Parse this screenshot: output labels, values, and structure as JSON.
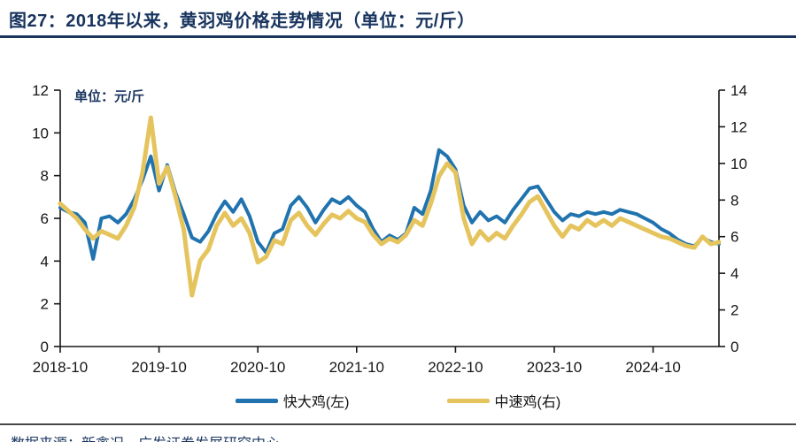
{
  "figure": {
    "title": "图27：2018年以来，黄羽鸡价格走势情况（单位：元/斤）",
    "source": "数据来源：新禽况，广发证券发展研究中心"
  },
  "colors": {
    "accent_navy": "#18345E",
    "fast_chicken_blue": "#2073AE",
    "medium_chicken_gold": "#E5C45E",
    "axis_text": "#161616",
    "footer_rule": "#474747"
  },
  "chart_data": {
    "type": "line",
    "title": "2018年以来，黄羽鸡价格走势情况",
    "unit_label": "单位：元/斤",
    "legend_position": "bottom",
    "grid": false,
    "x_tick_labels": [
      "2018-10",
      "2019-10",
      "2020-10",
      "2021-10",
      "2022-10",
      "2023-10",
      "2024-10"
    ],
    "left_axis": {
      "ticks": [
        0,
        2,
        4,
        6,
        8,
        10,
        12
      ],
      "range": [
        0,
        12
      ]
    },
    "right_axis": {
      "ticks": [
        0,
        2,
        4,
        6,
        8,
        10,
        12,
        14
      ],
      "range": [
        0,
        14
      ]
    },
    "x": [
      "2018-10",
      "2018-11",
      "2018-12",
      "2019-01",
      "2019-02",
      "2019-03",
      "2019-04",
      "2019-05",
      "2019-06",
      "2019-07",
      "2019-08",
      "2019-09",
      "2019-10",
      "2019-11",
      "2019-12",
      "2020-01",
      "2020-02",
      "2020-03",
      "2020-04",
      "2020-05",
      "2020-06",
      "2020-07",
      "2020-08",
      "2020-09",
      "2020-10",
      "2020-11",
      "2020-12",
      "2021-01",
      "2021-02",
      "2021-03",
      "2021-04",
      "2021-05",
      "2021-06",
      "2021-07",
      "2021-08",
      "2021-09",
      "2021-10",
      "2021-11",
      "2021-12",
      "2022-01",
      "2022-02",
      "2022-03",
      "2022-04",
      "2022-05",
      "2022-06",
      "2022-07",
      "2022-08",
      "2022-09",
      "2022-10",
      "2022-11",
      "2022-12",
      "2023-01",
      "2023-02",
      "2023-03",
      "2023-04",
      "2023-05",
      "2023-06",
      "2023-07",
      "2023-08",
      "2023-09",
      "2023-10",
      "2023-11",
      "2023-12",
      "2024-01",
      "2024-02",
      "2024-03",
      "2024-04",
      "2024-05",
      "2024-06",
      "2024-07",
      "2024-08",
      "2024-09",
      "2024-10",
      "2024-11",
      "2024-12",
      "2025-01",
      "2025-02",
      "2025-03",
      "2025-04",
      "2025-05",
      "2025-06"
    ],
    "series": [
      {
        "name": "快大鸡(左)",
        "axis": "left",
        "color": "#2073AE",
        "width": 4,
        "values": [
          6.5,
          6.3,
          6.2,
          5.8,
          4.1,
          6.0,
          6.1,
          5.8,
          6.2,
          6.9,
          7.8,
          8.9,
          7.3,
          8.5,
          7.2,
          6.2,
          5.1,
          4.9,
          5.4,
          6.2,
          6.8,
          6.3,
          6.9,
          6.1,
          4.9,
          4.4,
          5.3,
          5.5,
          6.6,
          7.0,
          6.5,
          5.8,
          6.4,
          6.9,
          6.7,
          7.0,
          6.6,
          6.3,
          5.5,
          4.9,
          5.2,
          5.0,
          5.3,
          6.5,
          6.2,
          7.3,
          9.2,
          8.9,
          8.3,
          6.6,
          5.8,
          6.3,
          5.9,
          6.1,
          5.8,
          6.4,
          6.9,
          7.4,
          7.5,
          6.9,
          6.3,
          5.9,
          6.2,
          6.1,
          6.3,
          6.2,
          6.3,
          6.2,
          6.4,
          6.3,
          6.2,
          6.0,
          5.8,
          5.5,
          5.3,
          5.0,
          4.8,
          4.7,
          5.1,
          4.9,
          4.8
        ]
      },
      {
        "name": "中速鸡(右)",
        "axis": "right",
        "color": "#E5C45E",
        "width": 5,
        "values": [
          7.8,
          7.4,
          7.0,
          6.4,
          5.9,
          6.3,
          6.1,
          5.9,
          6.6,
          7.6,
          9.5,
          12.5,
          8.9,
          9.8,
          8.2,
          6.4,
          2.8,
          4.7,
          5.3,
          6.6,
          7.3,
          6.6,
          7.0,
          6.2,
          4.6,
          4.9,
          5.8,
          5.6,
          6.9,
          7.3,
          6.6,
          6.1,
          6.7,
          7.2,
          7.0,
          7.4,
          7.0,
          6.8,
          6.1,
          5.6,
          5.9,
          5.7,
          6.1,
          6.9,
          6.6,
          7.8,
          9.3,
          10.0,
          9.5,
          7.0,
          5.6,
          6.3,
          5.8,
          6.2,
          5.9,
          6.6,
          7.2,
          7.9,
          8.2,
          7.4,
          6.6,
          6.0,
          6.6,
          6.4,
          6.9,
          6.6,
          6.9,
          6.6,
          7.0,
          6.8,
          6.6,
          6.4,
          6.2,
          6.0,
          5.9,
          5.7,
          5.5,
          5.4,
          6.0,
          5.6,
          5.7
        ]
      }
    ]
  }
}
